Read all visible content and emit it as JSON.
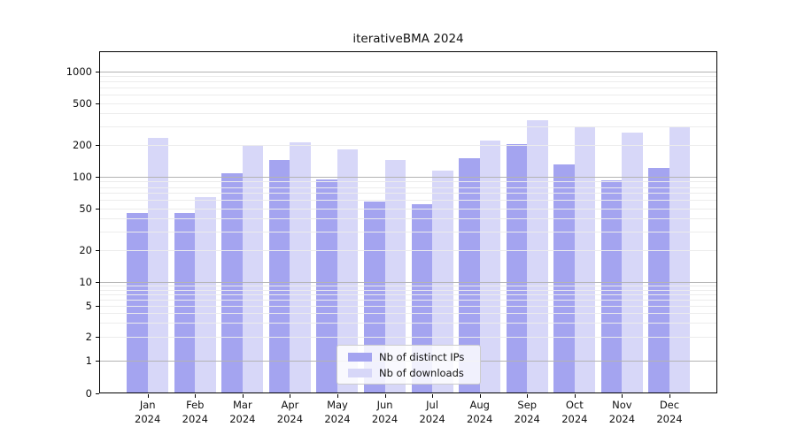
{
  "chart_data": {
    "type": "bar",
    "title": "iterativeBMA 2024",
    "scale": "symlog",
    "grid": true,
    "legend_position": "bottom-center",
    "categories": [
      "Jan",
      "Feb",
      "Mar",
      "Apr",
      "May",
      "Jun",
      "Jul",
      "Aug",
      "Sep",
      "Oct",
      "Nov",
      "Dec"
    ],
    "year": "2024",
    "series": [
      {
        "name": "Nb of distinct IPs",
        "color": "#a4a4f0",
        "values": [
          45,
          45,
          108,
          145,
          95,
          58,
          55,
          150,
          203,
          131,
          93,
          121
        ]
      },
      {
        "name": "Nb of downloads",
        "color": "#d7d7f8",
        "values": [
          235,
          64,
          198,
          212,
          181,
          144,
          115,
          219,
          345,
          296,
          265,
          299
        ]
      }
    ],
    "y_ticks": [
      "1000",
      "500",
      "200",
      "100",
      "50",
      "20",
      "10",
      "5",
      "2",
      "1",
      "0"
    ],
    "ylim": [
      0,
      1400
    ],
    "colors": {
      "grid_minor": "#ececec",
      "grid_major": "#b3b3b3",
      "axis": "#000000",
      "background": "#ffffff"
    }
  }
}
